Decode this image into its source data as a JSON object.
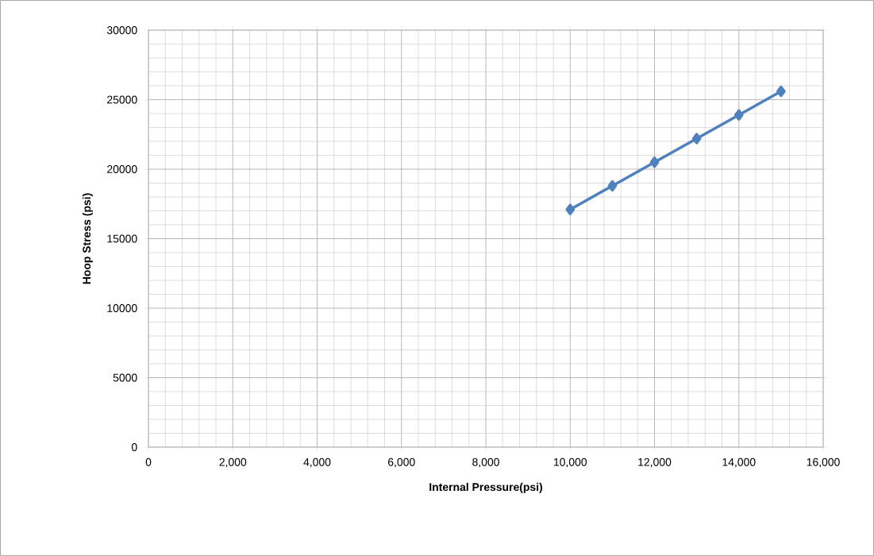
{
  "chart_data": {
    "type": "line",
    "xlabel": "Internal Pressure(psi)",
    "ylabel": "Hoop Stress (psi)",
    "x": [
      10000,
      11000,
      12000,
      13000,
      14000,
      15000
    ],
    "series": [
      {
        "color": "#4f81bd",
        "values": [
          17100,
          18800,
          20500,
          22200,
          23900,
          25600
        ]
      }
    ],
    "xlim": [
      0,
      16000
    ],
    "ylim": [
      0,
      30000
    ],
    "xticks": [
      {
        "value": 0,
        "label": "0"
      },
      {
        "value": 2000,
        "label": "2,000"
      },
      {
        "value": 4000,
        "label": "4,000"
      },
      {
        "value": 6000,
        "label": "6,000"
      },
      {
        "value": 8000,
        "label": "8,000"
      },
      {
        "value": 10000,
        "label": "10,000"
      },
      {
        "value": 12000,
        "label": "12,000"
      },
      {
        "value": 14000,
        "label": "14,000"
      },
      {
        "value": 16000,
        "label": "16,000"
      }
    ],
    "yticks": [
      0,
      5000,
      10000,
      15000,
      20000,
      25000,
      30000
    ],
    "grid": true,
    "marker": "diamond",
    "line_style": "solid"
  }
}
